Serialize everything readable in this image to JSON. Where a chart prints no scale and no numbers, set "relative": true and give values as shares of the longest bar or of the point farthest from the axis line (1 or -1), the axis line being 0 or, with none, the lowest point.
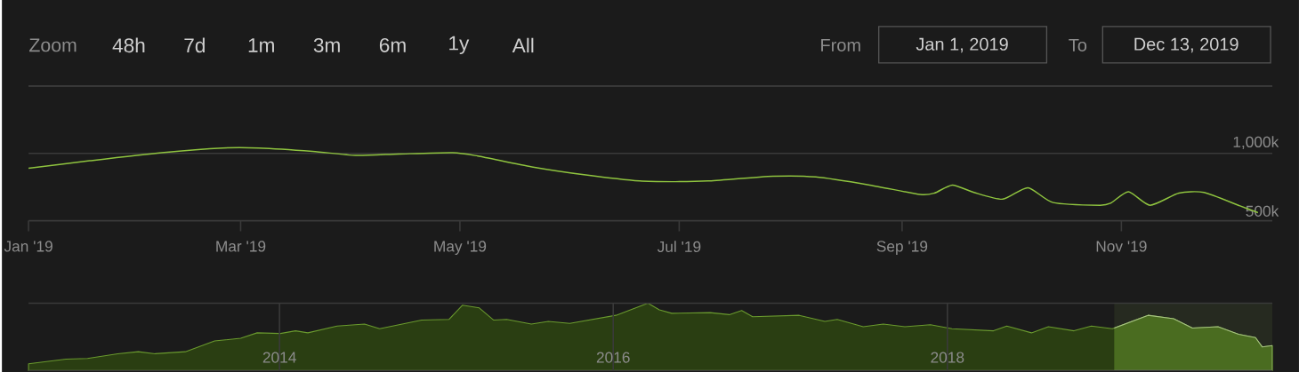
{
  "chart_data": [
    {
      "type": "line",
      "annotations": [
        "Zoom",
        "48h",
        "7d",
        "1m",
        "3m",
        "6m",
        "1y",
        "All",
        "From",
        "Jan 1, 2019",
        "To",
        "Dec 13, 2019"
      ],
      "x": [
        "2019-01-01",
        "2019-01-18",
        "2019-02-07",
        "2019-02-24",
        "2019-03-06",
        "2019-03-21",
        "2019-04-02",
        "2019-04-14",
        "2019-04-29",
        "2019-05-06",
        "2019-05-21",
        "2019-06-05",
        "2019-06-20",
        "2019-06-30",
        "2019-07-09",
        "2019-07-27",
        "2019-08-08",
        "2019-08-23",
        "2019-09-06",
        "2019-09-10",
        "2019-09-15",
        "2019-09-21",
        "2019-09-29",
        "2019-10-06",
        "2019-10-13",
        "2019-10-26",
        "2019-10-29",
        "2019-11-03",
        "2019-11-09",
        "2019-11-17",
        "2019-11-24",
        "2019-12-04",
        "2019-12-09"
      ],
      "series": [
        {
          "color": "#8fc43f",
          "values": [
            890,
            945,
            1005,
            1040,
            1040,
            1015,
            985,
            995,
            1005,
            980,
            900,
            840,
            795,
            790,
            795,
            830,
            825,
            765,
            695,
            705,
            765,
            710,
            660,
            745,
            635,
            615,
            630,
            715,
            615,
            705,
            710,
            610,
            560
          ]
        }
      ],
      "xlim": [
        "2019-01-01",
        "2019-12-13"
      ],
      "ylim": [
        500,
        1500
      ],
      "xticks": [
        {
          "value": "2019-01-01",
          "label": "Jan '19"
        },
        {
          "value": "2019-03-01",
          "label": "Mar '19"
        },
        {
          "value": "2019-05-01",
          "label": "May '19"
        },
        {
          "value": "2019-07-01",
          "label": "Jul '19"
        },
        {
          "value": "2019-09-01",
          "label": "Sep '19"
        },
        {
          "value": "2019-11-01",
          "label": "Nov '19"
        }
      ],
      "yticks": [
        {
          "value": 500,
          "label": "500k"
        },
        {
          "value": 1000,
          "label": "1,000k"
        },
        {
          "value": 1500,
          "label": null
        }
      ],
      "grid": "y"
    },
    {
      "type": "area",
      "relative": true,
      "x": [
        "2012-07-01",
        "2012-09-21",
        "2012-11-07",
        "2013-01-12",
        "2013-02-26",
        "2013-04-04",
        "2013-06-09",
        "2013-08-12",
        "2013-10-08",
        "2013-11-13",
        "2014-01-03",
        "2014-02-05",
        "2014-03-04",
        "2014-05-07",
        "2014-07-06",
        "2014-08-08",
        "2014-11-08",
        "2015-01-07",
        "2015-02-05",
        "2015-03-14",
        "2015-04-14",
        "2015-05-13",
        "2015-07-06",
        "2015-08-12",
        "2015-09-28",
        "2016-01-07",
        "2016-03-17",
        "2016-04-11",
        "2016-05-08",
        "2016-07-31",
        "2016-09-11",
        "2016-10-08",
        "2016-11-01",
        "2017-02-11",
        "2017-04-08",
        "2017-05-05",
        "2017-07-01",
        "2017-08-14",
        "2017-09-30",
        "2017-11-25",
        "2018-01-11",
        "2018-04-12",
        "2018-05-11",
        "2018-07-04",
        "2018-08-10",
        "2018-10-05",
        "2018-11-12",
        "2018-12-28",
        "2019-03-16",
        "2019-05-11",
        "2019-06-21",
        "2019-08-16",
        "2019-09-30",
        "2019-11-06",
        "2019-11-21",
        "2019-12-13"
      ],
      "series": [
        {
          "color": "#6a9a2e",
          "values": [
            0.1,
            0.17,
            0.18,
            0.25,
            0.28,
            0.25,
            0.28,
            0.44,
            0.48,
            0.56,
            0.55,
            0.59,
            0.56,
            0.66,
            0.69,
            0.62,
            0.75,
            0.76,
            0.97,
            0.93,
            0.75,
            0.76,
            0.69,
            0.73,
            0.7,
            0.82,
            1.0,
            0.9,
            0.85,
            0.86,
            0.83,
            0.89,
            0.8,
            0.82,
            0.73,
            0.76,
            0.65,
            0.69,
            0.65,
            0.68,
            0.62,
            0.59,
            0.66,
            0.56,
            0.65,
            0.59,
            0.66,
            0.62,
            0.82,
            0.77,
            0.63,
            0.65,
            0.54,
            0.49,
            0.35,
            0.37
          ]
        }
      ],
      "xlim": [
        "2012-07-01",
        "2019-12-13"
      ],
      "xticks": [
        {
          "value": "2014-01-01",
          "label": "2014"
        },
        {
          "value": "2016-01-01",
          "label": "2016"
        },
        {
          "value": "2018-01-01",
          "label": "2018"
        }
      ],
      "grid": "x",
      "bands": [
        {
          "axis": "x",
          "from": "2019-01-01",
          "to": "2019-12-13",
          "color": "#262a20"
        }
      ]
    }
  ]
}
